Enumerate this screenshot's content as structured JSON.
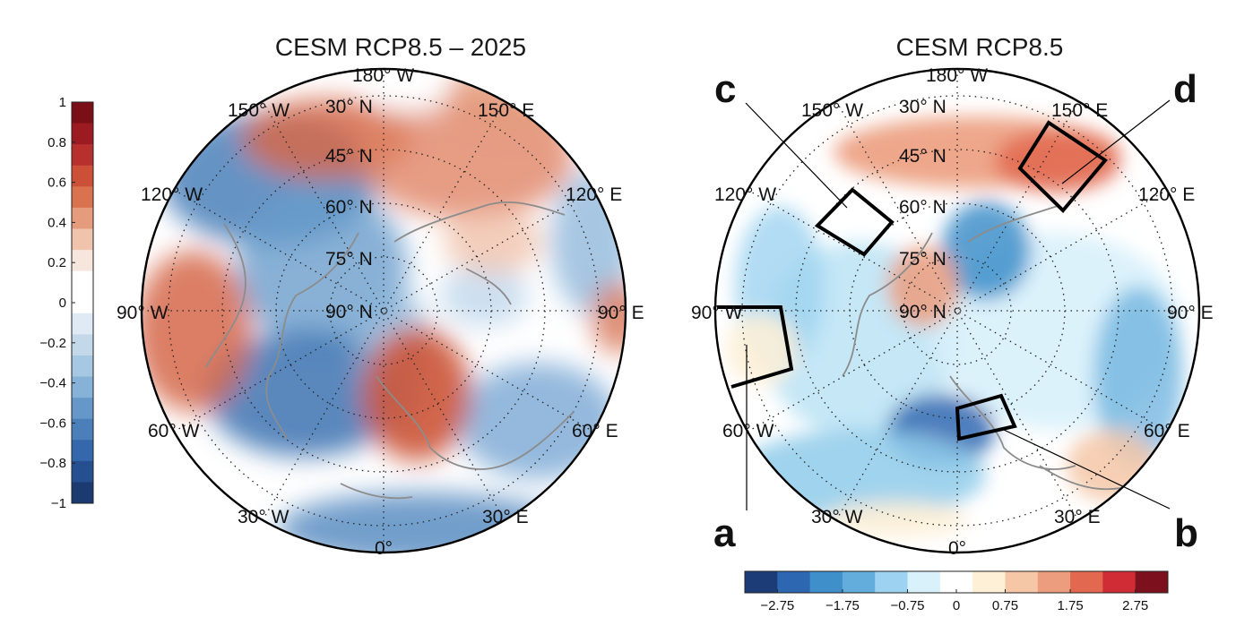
{
  "left_map": {
    "title": "CESM RCP8.5 – 2025",
    "lon_labels": [
      "180° W",
      "150° W",
      "120° W",
      "90° W",
      "60° W",
      "30° W",
      "0°",
      "30° E",
      "60° E",
      "90° E",
      "120° E",
      "150° E"
    ],
    "lat_labels": [
      "30° N",
      "45° N",
      "60° N",
      "75° N",
      "90° N"
    ]
  },
  "right_map": {
    "title": "CESM RCP8.5",
    "lon_labels": [
      "180° W",
      "150° W",
      "120° W",
      "90° W",
      "60° W",
      "30° W",
      "0°",
      "30° E",
      "60° E",
      "90° E",
      "120° E",
      "150° E"
    ],
    "lat_labels": [
      "30° N",
      "45° N",
      "60° N",
      "75° N",
      "90° N"
    ],
    "panel_labels": [
      "a",
      "b",
      "c",
      "d"
    ]
  },
  "colorbar_left": {
    "orientation": "vertical",
    "range": [
      -1,
      1
    ],
    "ticks": [
      "1",
      "0.8",
      "0.6",
      "0.4",
      "0.2",
      "0",
      "−0.2",
      "−0.4",
      "−0.6",
      "−0.8",
      "−1"
    ],
    "colors": [
      "#7a0f18",
      "#9c1b23",
      "#b8302e",
      "#cc5038",
      "#d9734f",
      "#e59c7d",
      "#efc3ac",
      "#f7e6dc",
      "#ffffff",
      "#ffffff",
      "#dfeaf4",
      "#c3d9ea",
      "#a6c8e2",
      "#87b2d8",
      "#6598c8",
      "#4a7fb9",
      "#3468aa",
      "#254f8e",
      "#1b3b70"
    ]
  },
  "colorbar_right": {
    "orientation": "horizontal",
    "range": [
      -3.25,
      3.25
    ],
    "ticks": [
      "−2.75",
      "−1.75",
      "−0.75",
      "0",
      "0.75",
      "1.75",
      "2.75"
    ],
    "colors": [
      "#1c3c78",
      "#2d67b2",
      "#3f8fca",
      "#63addd",
      "#9dd3f0",
      "#d8f1fb",
      "#ffffff",
      "#fdf0d7",
      "#f5c7a7",
      "#ec9d7e",
      "#e2684f",
      "#cf2c36",
      "#7c111d"
    ]
  }
}
